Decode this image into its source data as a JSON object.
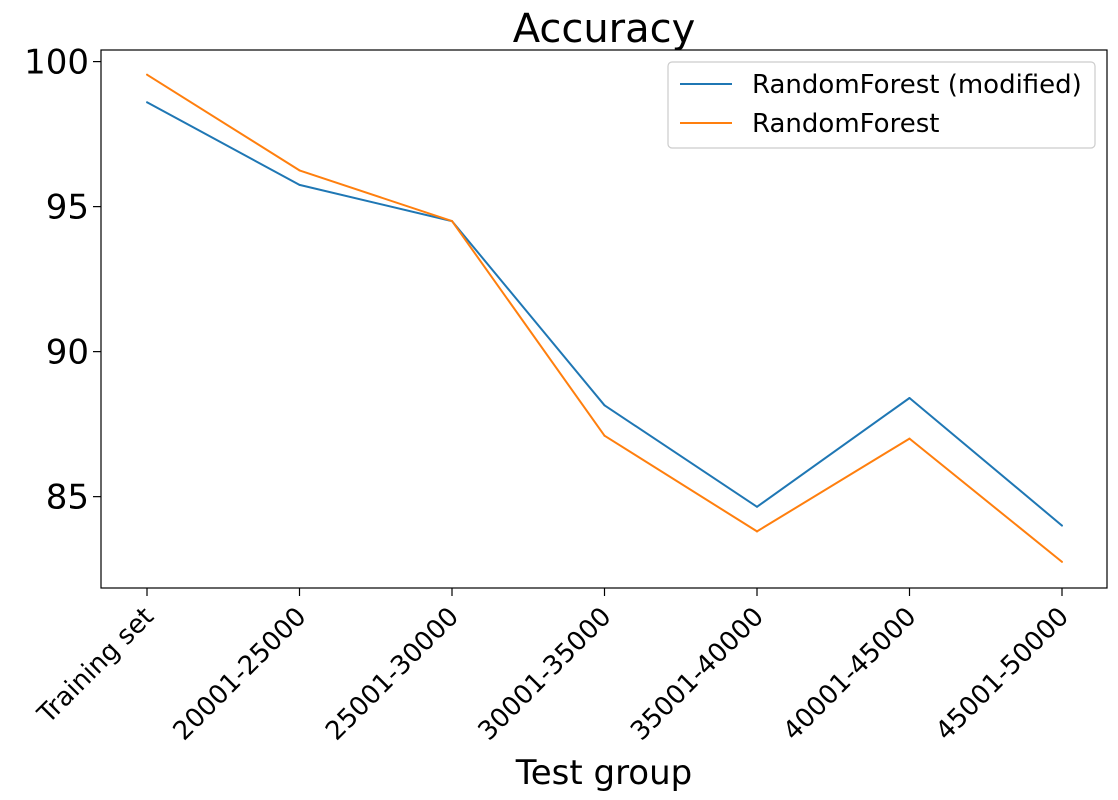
{
  "chart_data": {
    "type": "line",
    "title": "Accuracy",
    "xlabel": "Test group",
    "ylabel": "",
    "categories": [
      "Training set",
      "20001-25000",
      "25001-30000",
      "30001-35000",
      "35001-40000",
      "40001-45000",
      "45001-50000"
    ],
    "series": [
      {
        "name": "RandomForest (modified)",
        "color": "#1f77b4",
        "values": [
          98.6,
          95.75,
          94.5,
          88.15,
          84.65,
          88.4,
          84.0
        ]
      },
      {
        "name": "RandomForest",
        "color": "#ff7f0e",
        "values": [
          99.55,
          96.25,
          94.5,
          87.1,
          83.8,
          87.0,
          82.75
        ]
      }
    ],
    "ylim": [
      81.85,
      100.4
    ],
    "yticks": [
      85,
      90,
      95,
      100
    ],
    "grid": false,
    "legend_position": "top-right"
  }
}
